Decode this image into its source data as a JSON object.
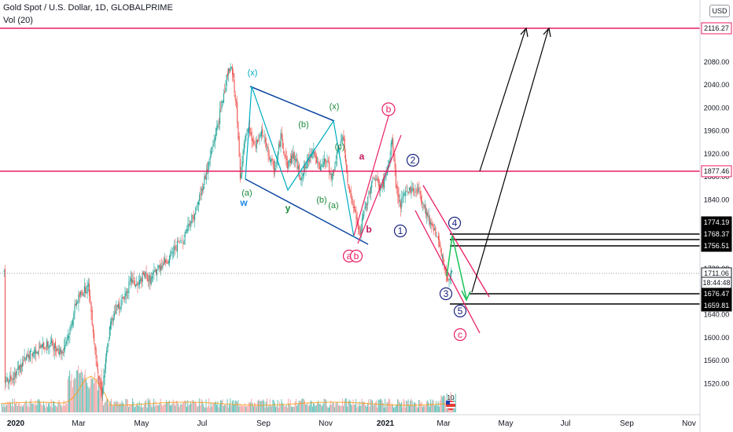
{
  "header": {
    "title": "Gold Spot / U.S. Dollar, 1D, GLOBALPRIME",
    "volume_label": "Vol (20)",
    "currency": "USD"
  },
  "colors": {
    "up": "#26a69a",
    "down": "#ef5350",
    "magenta": "#e91e63",
    "navy": "#1a237e",
    "channel_blue": "#0d47a1",
    "teal_wave": "#00acc1",
    "green_label": "#1b8a3a",
    "arrow_green": "#22c55e",
    "black": "#000000"
  },
  "chart_data": {
    "type": "candlestick",
    "x_tick_labels": [
      "2020",
      "Mar",
      "May",
      "Jul",
      "Sep",
      "Nov",
      "2021",
      "Mar",
      "May",
      "Jul",
      "Sep",
      "Nov"
    ],
    "y_tick_labels": [
      1520,
      1560,
      1600,
      1640,
      1680,
      1720,
      1760,
      1800,
      1840,
      1880,
      1920,
      1960,
      2000,
      2040,
      2080
    ],
    "ylim": [
      1496,
      2160
    ],
    "price_series": [
      [
        1,
        1525
      ],
      [
        10,
        1535
      ],
      [
        20,
        1560
      ],
      [
        30,
        1578
      ],
      [
        38,
        1585
      ],
      [
        45,
        1590
      ],
      [
        55,
        1575
      ],
      [
        62,
        1610
      ],
      [
        68,
        1660
      ],
      [
        74,
        1680
      ],
      [
        80,
        1690
      ],
      [
        86,
        1580
      ],
      [
        92,
        1500
      ],
      [
        96,
        1560
      ],
      [
        100,
        1620
      ],
      [
        105,
        1650
      ],
      [
        110,
        1660
      ],
      [
        115,
        1680
      ],
      [
        120,
        1700
      ],
      [
        126,
        1690
      ],
      [
        132,
        1710
      ],
      [
        138,
        1700
      ],
      [
        144,
        1720
      ],
      [
        150,
        1730
      ],
      [
        156,
        1740
      ],
      [
        162,
        1760
      ],
      [
        168,
        1770
      ],
      [
        174,
        1800
      ],
      [
        180,
        1820
      ],
      [
        186,
        1860
      ],
      [
        192,
        1900
      ],
      [
        198,
        1950
      ],
      [
        204,
        2000
      ],
      [
        210,
        2060
      ],
      [
        214,
        2067
      ],
      [
        218,
        2010
      ],
      [
        222,
        1880
      ],
      [
        226,
        1940
      ],
      [
        230,
        1960
      ],
      [
        236,
        1930
      ],
      [
        242,
        1960
      ],
      [
        248,
        1920
      ],
      [
        254,
        1890
      ],
      [
        260,
        1950
      ],
      [
        266,
        1900
      ],
      [
        272,
        1920
      ],
      [
        278,
        1880
      ],
      [
        284,
        1900
      ],
      [
        290,
        1930
      ],
      [
        296,
        1890
      ],
      [
        302,
        1910
      ],
      [
        308,
        1880
      ],
      [
        314,
        1930
      ],
      [
        318,
        1950
      ],
      [
        322,
        1880
      ],
      [
        326,
        1840
      ],
      [
        330,
        1810
      ],
      [
        334,
        1780
      ],
      [
        338,
        1820
      ],
      [
        342,
        1850
      ],
      [
        346,
        1880
      ],
      [
        350,
        1870
      ],
      [
        354,
        1860
      ],
      [
        358,
        1880
      ],
      [
        362,
        1910
      ],
      [
        364,
        1950
      ],
      [
        368,
        1860
      ],
      [
        372,
        1830
      ],
      [
        376,
        1850
      ],
      [
        380,
        1860
      ],
      [
        384,
        1855
      ],
      [
        388,
        1860
      ],
      [
        392,
        1840
      ],
      [
        396,
        1820
      ],
      [
        400,
        1800
      ],
      [
        404,
        1790
      ],
      [
        408,
        1760
      ],
      [
        412,
        1730
      ],
      [
        416,
        1700
      ],
      [
        420,
        1720
      ],
      [
        422,
        1711
      ]
    ],
    "last_price": 1711.06,
    "volume_max": 10
  },
  "price_tags": [
    {
      "label": "2116.27",
      "price": 2116.27,
      "color": "#e91e63"
    },
    {
      "label": "1877.46",
      "price": 1877.46,
      "color": "#e91e63"
    },
    {
      "label": "1774.19",
      "price": 1774.19,
      "color": "#000000"
    },
    {
      "label": "1768.37",
      "price": 1768.37,
      "color": "#000000"
    },
    {
      "label": "1756.51",
      "price": 1756.51,
      "color": "#000000"
    },
    {
      "label": "1711.06",
      "price": 1711.06,
      "color": "#131722"
    },
    {
      "label": "18:44:48",
      "price": 1697,
      "color": "#131722"
    },
    {
      "label": "1676.47",
      "price": 1676.47,
      "color": "#000000"
    },
    {
      "label": "1659.81",
      "price": 1659.81,
      "color": "#000000"
    }
  ],
  "wave_labels": [
    {
      "text": "(x)",
      "kind": "paren",
      "color": "#00acc1"
    },
    {
      "text": "w",
      "kind": "plain",
      "color": "#1e88e5"
    },
    {
      "text": "(a)",
      "kind": "paren",
      "color": "#1b8a3a"
    },
    {
      "text": "(b)",
      "kind": "paren",
      "color": "#1b8a3a"
    },
    {
      "text": "(c)",
      "kind": "paren",
      "color": "#1b8a3a"
    },
    {
      "text": "y",
      "kind": "plain",
      "color": "#1b8a3a"
    },
    {
      "text": "(x)",
      "kind": "paren",
      "color": "#1b8a3a"
    },
    {
      "text": "(a)",
      "kind": "paren",
      "color": "#1b8a3a"
    },
    {
      "text": "(b)",
      "kind": "paren",
      "color": "#1b8a3a"
    },
    {
      "text": "(c)",
      "kind": "paren",
      "color": "#1b8a3a"
    },
    {
      "text": "a",
      "kind": "plain",
      "color": "#c2185b"
    },
    {
      "text": "b",
      "kind": "plain",
      "color": "#c2185b"
    },
    {
      "text": "a",
      "kind": "circle",
      "color": "#e91e63"
    },
    {
      "text": "b",
      "kind": "circle",
      "color": "#e91e63"
    },
    {
      "text": "1",
      "kind": "circle",
      "color": "#1a237e"
    },
    {
      "text": "2",
      "kind": "circle",
      "color": "#1a237e"
    },
    {
      "text": "3",
      "kind": "circle",
      "color": "#1a237e"
    },
    {
      "text": "4",
      "kind": "circle",
      "color": "#1a237e"
    },
    {
      "text": "5",
      "kind": "circle",
      "color": "#1a237e"
    },
    {
      "text": "c",
      "kind": "circle",
      "color": "#e91e63"
    }
  ]
}
